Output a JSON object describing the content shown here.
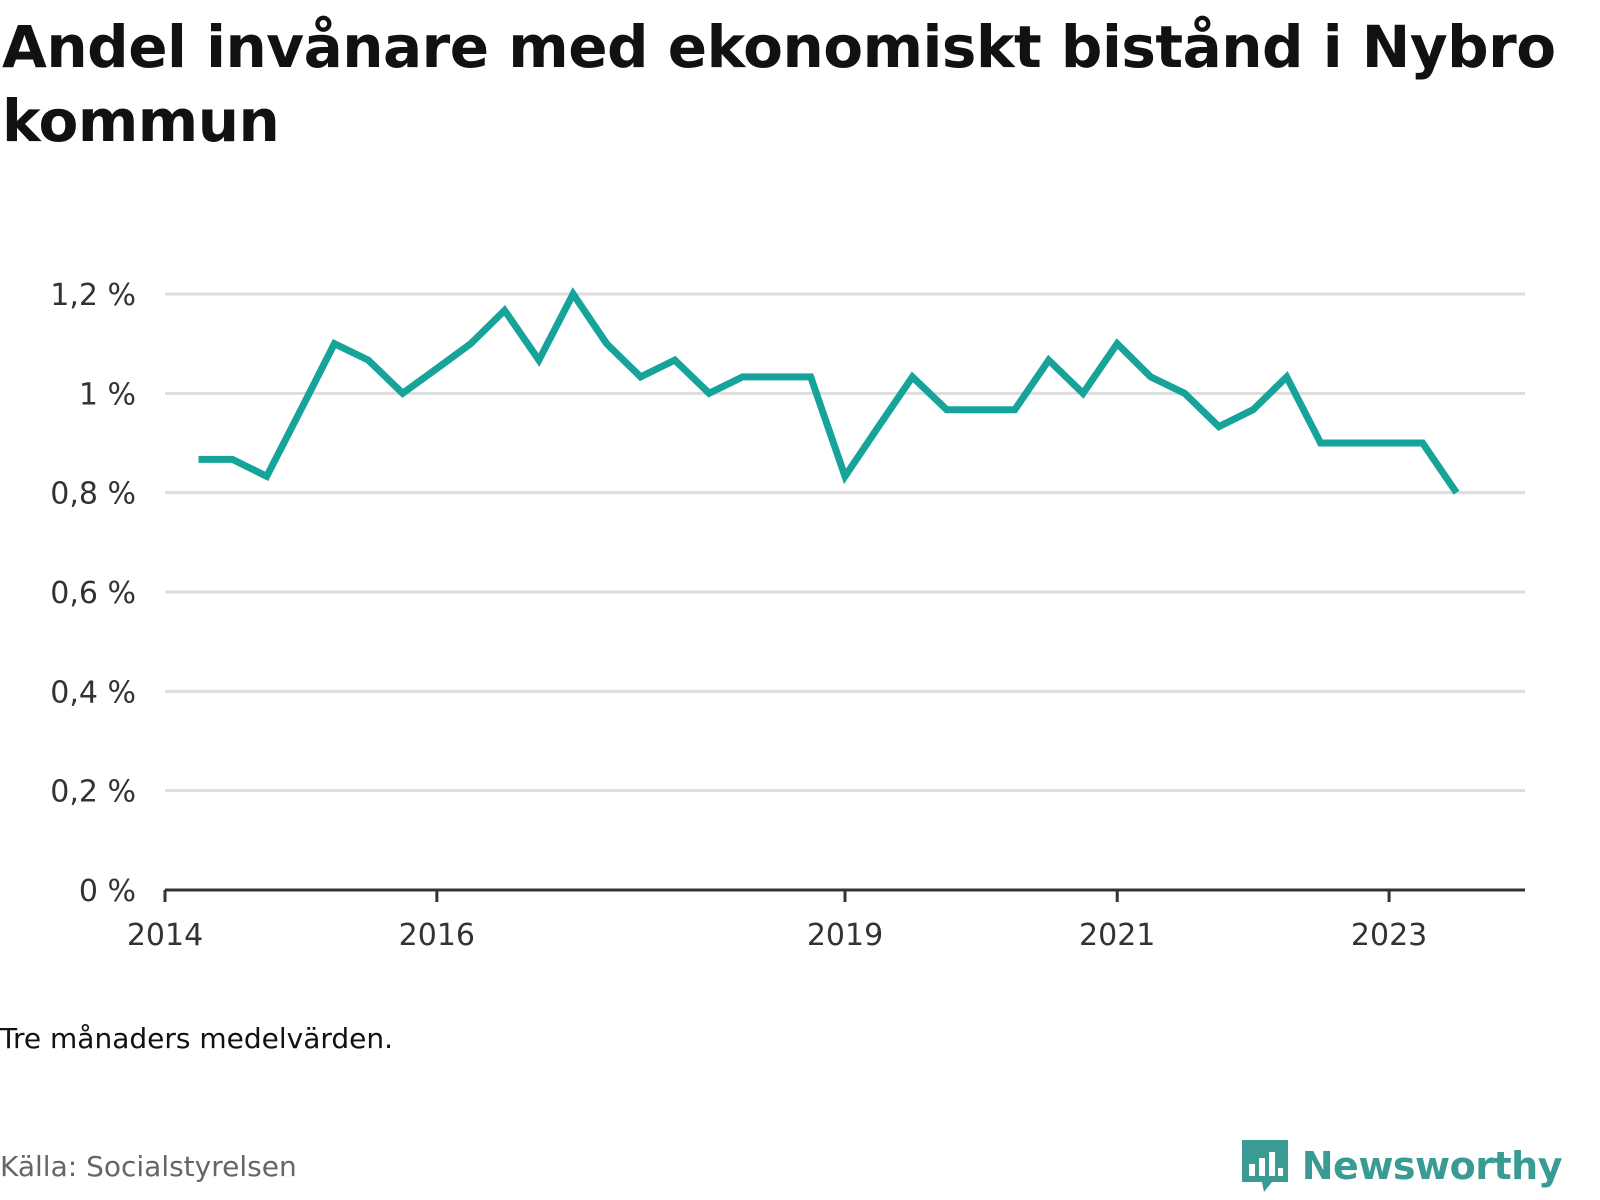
{
  "title": "Andel invånare med ekonomiskt bistånd i Nybro kommun",
  "note": "Tre månaders medelvärden.",
  "source": "Källa: Socialstyrelsen",
  "brand": {
    "name": "Newsworthy",
    "icon": "newsworthy-logo-icon"
  },
  "colors": {
    "line": "#16a39a",
    "grid": "#dddddd",
    "axis": "#333333",
    "brand": "#3a9a94"
  },
  "chart_data": {
    "type": "line",
    "title": "Andel invånare med ekonomiskt bistånd i Nybro kommun",
    "xlabel": "",
    "ylabel": "",
    "ylim": [
      0,
      1.2
    ],
    "xlim": [
      "2014-01-01",
      "2024-01-01"
    ],
    "grid": true,
    "y_ticks": [
      {
        "value": 0,
        "label": "0 %"
      },
      {
        "value": 0.2,
        "label": "0,2 %"
      },
      {
        "value": 0.4,
        "label": "0,4 %"
      },
      {
        "value": 0.6,
        "label": "0,6 %"
      },
      {
        "value": 0.8,
        "label": "0,8 %"
      },
      {
        "value": 1.0,
        "label": "1 %"
      },
      {
        "value": 1.2,
        "label": "1,2 %"
      }
    ],
    "x_ticks": [
      {
        "value": "2014-01-01",
        "label": "2014"
      },
      {
        "value": "2016-01-01",
        "label": "2016"
      },
      {
        "value": "2019-01-01",
        "label": "2019"
      },
      {
        "value": "2021-01-01",
        "label": "2021"
      },
      {
        "value": "2023-01-01",
        "label": "2023"
      }
    ],
    "series": [
      {
        "points": [
          [
            "2014-04-01",
            0.867
          ],
          [
            "2014-07-01",
            0.867
          ],
          [
            "2014-10-01",
            0.833
          ],
          [
            "2015-01-01",
            0.967
          ],
          [
            "2015-04-01",
            1.1
          ],
          [
            "2015-07-01",
            1.067
          ],
          [
            "2015-10-01",
            1.0
          ],
          [
            "2016-01-01",
            1.05
          ],
          [
            "2016-04-01",
            1.1
          ],
          [
            "2016-07-01",
            1.167
          ],
          [
            "2016-10-01",
            1.067
          ],
          [
            "2017-01-01",
            1.2
          ],
          [
            "2017-04-01",
            1.1
          ],
          [
            "2017-07-01",
            1.033
          ],
          [
            "2017-10-01",
            1.067
          ],
          [
            "2018-01-01",
            1.0
          ],
          [
            "2018-04-01",
            1.033
          ],
          [
            "2018-07-01",
            1.033
          ],
          [
            "2018-10-01",
            1.033
          ],
          [
            "2019-01-01",
            0.833
          ],
          [
            "2019-04-01",
            0.933
          ],
          [
            "2019-07-01",
            1.033
          ],
          [
            "2019-10-01",
            0.967
          ],
          [
            "2020-01-01",
            0.967
          ],
          [
            "2020-04-01",
            0.967
          ],
          [
            "2020-07-01",
            1.067
          ],
          [
            "2020-10-01",
            1.0
          ],
          [
            "2021-01-01",
            1.1
          ],
          [
            "2021-04-01",
            1.033
          ],
          [
            "2021-07-01",
            1.0
          ],
          [
            "2021-10-01",
            0.933
          ],
          [
            "2022-01-01",
            0.967
          ],
          [
            "2022-04-01",
            1.033
          ],
          [
            "2022-07-01",
            0.9
          ],
          [
            "2022-10-01",
            0.9
          ],
          [
            "2023-01-01",
            0.9
          ],
          [
            "2023-04-01",
            0.9
          ],
          [
            "2023-07-01",
            0.8
          ]
        ]
      }
    ]
  }
}
